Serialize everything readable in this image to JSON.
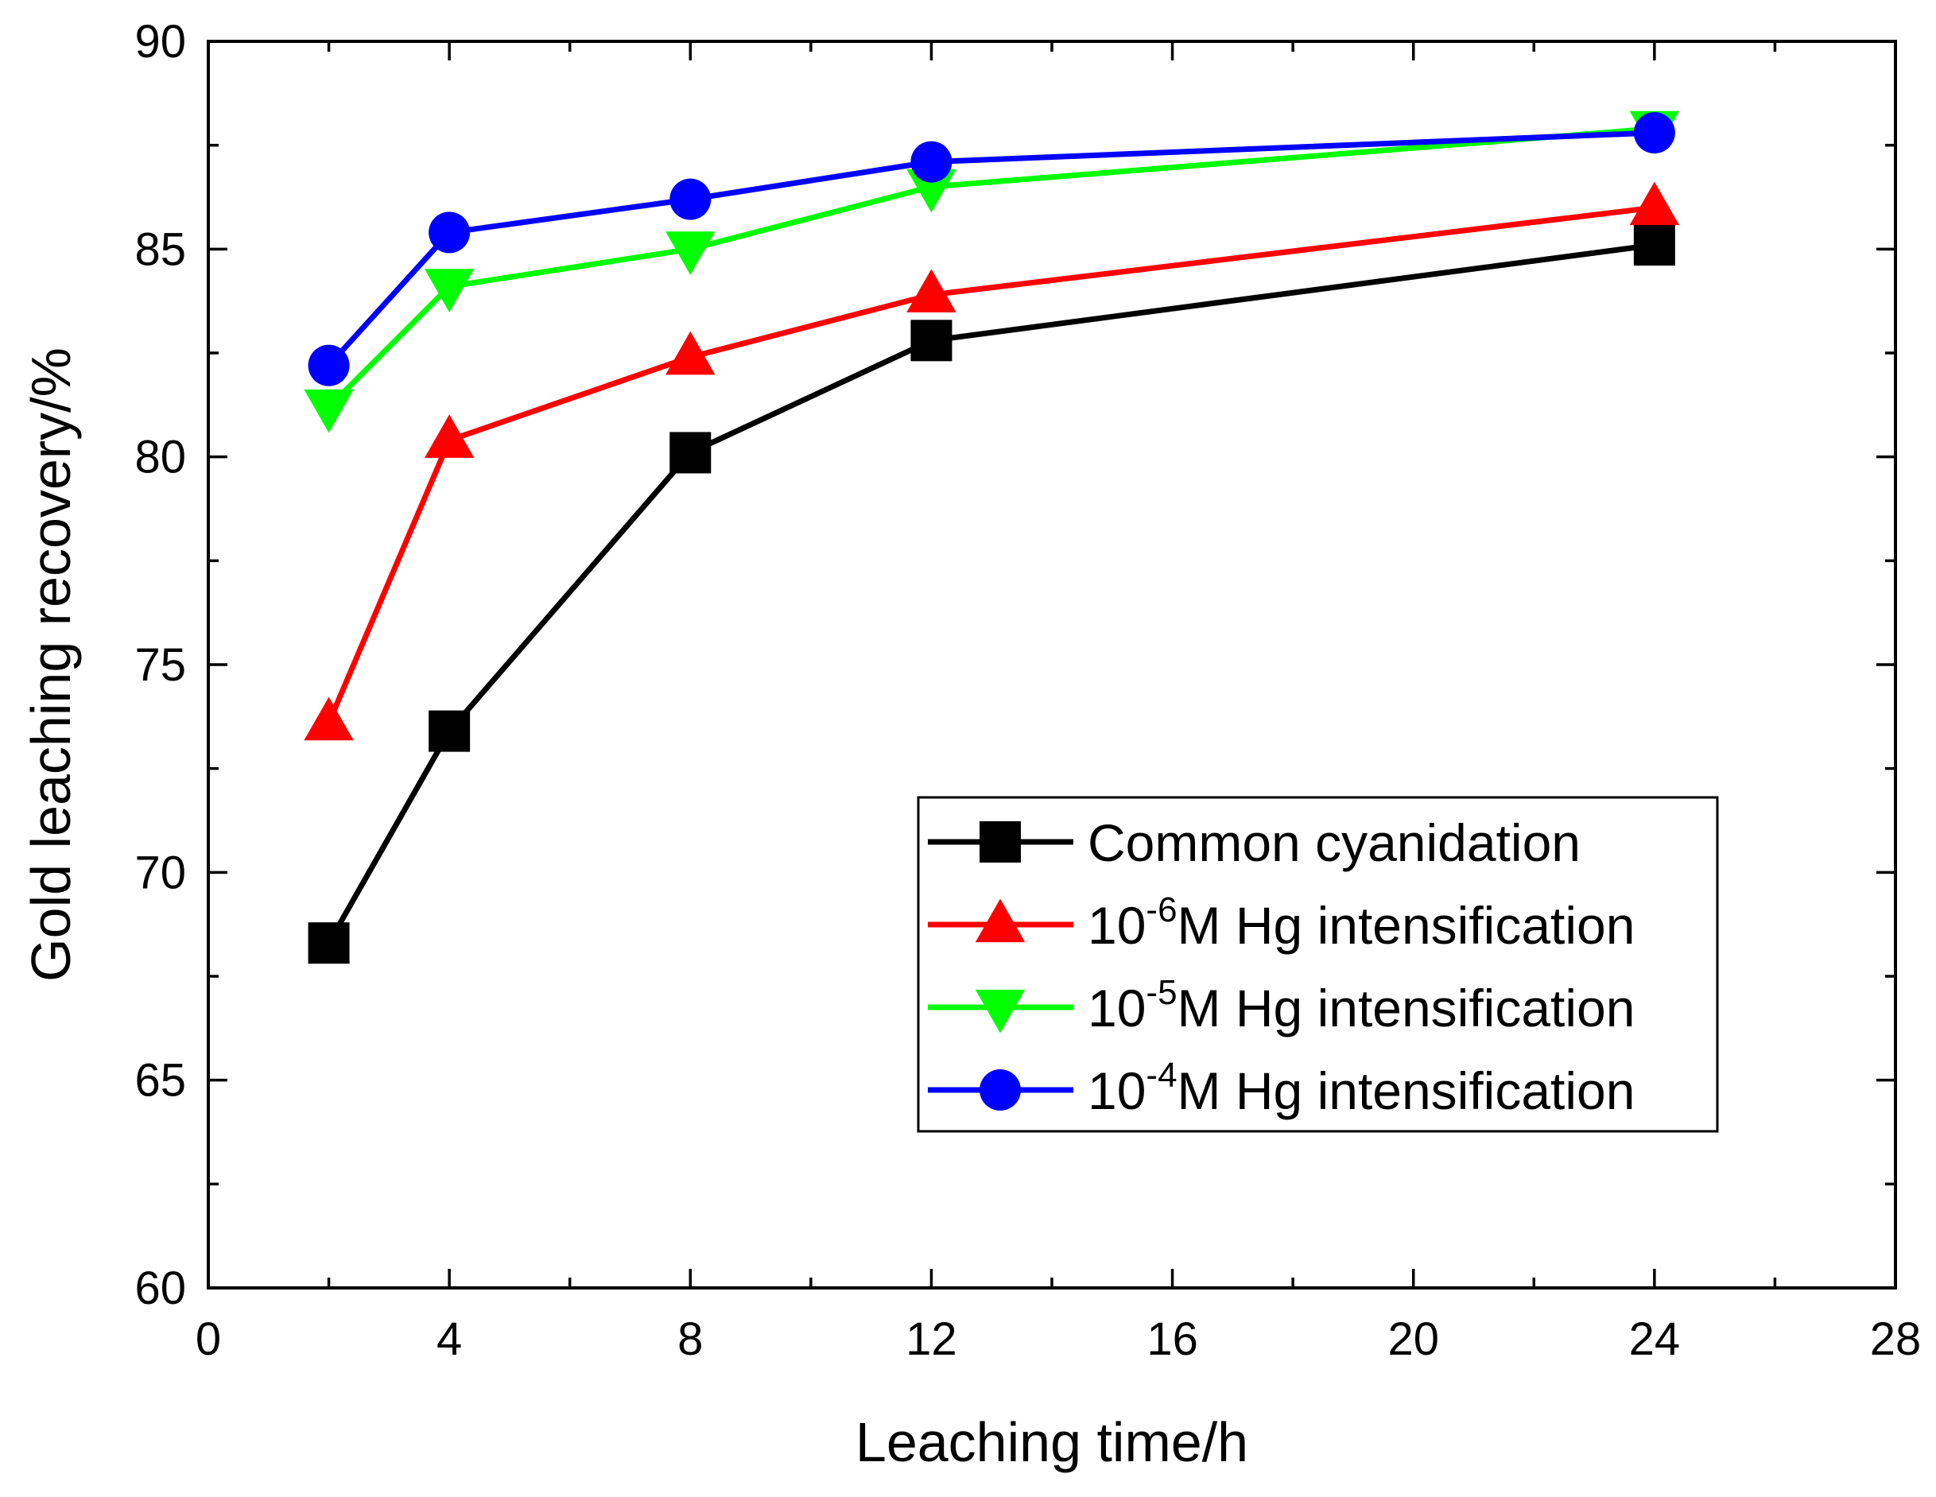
{
  "chart_data": {
    "type": "line",
    "title": "",
    "xlabel": "Leaching time/h",
    "ylabel": "Gold leaching recovery/%",
    "xlim": [
      0,
      28
    ],
    "ylim": [
      60,
      90
    ],
    "xticks": [
      0,
      4,
      8,
      12,
      16,
      20,
      24,
      28
    ],
    "yticks": [
      60,
      65,
      70,
      75,
      80,
      85,
      90
    ],
    "x_minor_step": 2,
    "y_minor_step": 2.5,
    "x": [
      2,
      4,
      8,
      12,
      24
    ],
    "legend_position": "bottom-right",
    "series": [
      {
        "name": "Common cyanidation",
        "label_parts": [
          "Common cyanidation"
        ],
        "color": "#000000",
        "marker": "square",
        "values": [
          68.3,
          73.4,
          80.1,
          82.8,
          85.1
        ]
      },
      {
        "name": "10-6M Hg intensification",
        "label_parts": [
          "10",
          "-6",
          "M Hg intensification"
        ],
        "color": "#ff0000",
        "marker": "triangle-up",
        "values": [
          73.6,
          80.4,
          82.4,
          83.9,
          86.0
        ]
      },
      {
        "name": "10-5M Hg intensification",
        "label_parts": [
          "10",
          "-5",
          "M Hg intensification"
        ],
        "color": "#00ff00",
        "marker": "triangle-down",
        "values": [
          81.2,
          84.1,
          85.0,
          86.5,
          87.9
        ]
      },
      {
        "name": "10-4M Hg intensification",
        "label_parts": [
          "10",
          "-4",
          "M Hg intensification"
        ],
        "color": "#0000ff",
        "marker": "circle",
        "values": [
          82.2,
          85.4,
          86.2,
          87.1,
          87.8
        ]
      }
    ]
  }
}
